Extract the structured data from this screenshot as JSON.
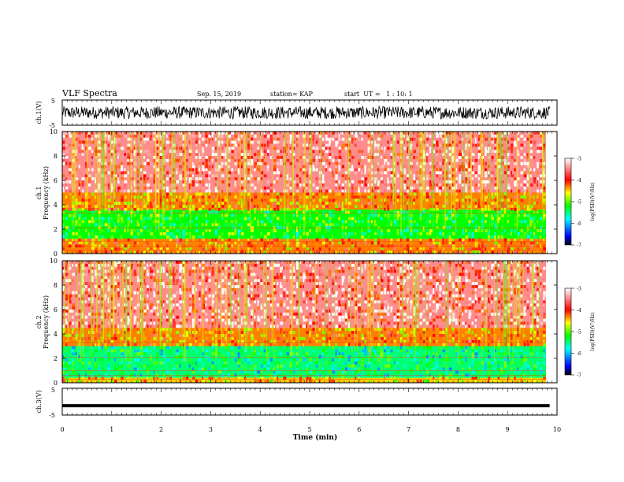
{
  "header": {
    "title": "VLF Spectra",
    "date": "Sep. 15, 2019",
    "station": "station= KAP",
    "start_ut": "start  UT =   1 : 10: 1"
  },
  "chart_data": [
    {
      "type": "line",
      "panel": "ch1-waveform",
      "ylabel": "ch.1(V)",
      "ylim": [
        -5,
        5
      ],
      "yticks": [
        "5",
        "-5"
      ],
      "xlim": [
        0,
        10
      ],
      "x_end": 9.85,
      "series": [
        {
          "amplitude_range": [
            -2.5,
            2.5
          ],
          "color": "#000000"
        }
      ]
    },
    {
      "type": "heatmap",
      "panel": "ch1-spectrogram",
      "ylabel": "ch.1\nFrequency (kHz)",
      "ylim": [
        0,
        10
      ],
      "yticks": [
        "0",
        "2",
        "4",
        "6",
        "8",
        "10"
      ],
      "xlim": [
        0,
        10
      ],
      "x_end": 9.85,
      "colorbar": {
        "label": "log(PSD)(V²/Hz)",
        "range": [
          -7,
          -3
        ],
        "ticks": [
          "-3",
          "-4",
          "-5",
          "-6",
          "-7"
        ]
      },
      "bands": [
        {
          "f_range": [
            5,
            10
          ],
          "logpsd": -3.3
        },
        {
          "f_range": [
            3.6,
            5
          ],
          "logpsd": -4.0
        },
        {
          "f_range": [
            1.2,
            3.6
          ],
          "logpsd": -5.0
        },
        {
          "f_range": [
            0,
            1.2
          ],
          "logpsd": -4.0
        }
      ]
    },
    {
      "type": "heatmap",
      "panel": "ch2-spectrogram",
      "ylabel": "ch.2\nFrequency (kHz)",
      "ylim": [
        0,
        10
      ],
      "yticks": [
        "0",
        "2",
        "4",
        "6",
        "8",
        "10"
      ],
      "xlim": [
        0,
        10
      ],
      "x_end": 9.85,
      "colorbar": {
        "label": "log(PSD)(V²/Hz)",
        "range": [
          -7,
          -3
        ],
        "ticks": [
          "-3",
          "-4",
          "-5",
          "-6",
          "-7"
        ]
      },
      "bands": [
        {
          "f_range": [
            4.5,
            10
          ],
          "logpsd": -3.3
        },
        {
          "f_range": [
            3.0,
            4.5
          ],
          "logpsd": -4.0
        },
        {
          "f_range": [
            0.4,
            3.0
          ],
          "logpsd": -5.3
        },
        {
          "f_range": [
            0,
            0.4
          ],
          "logpsd": -4.2
        }
      ]
    },
    {
      "type": "line",
      "panel": "ch3-waveform",
      "ylabel": "ch.3(V)",
      "ylim": [
        -5,
        5
      ],
      "yticks": [
        "5",
        "-5"
      ],
      "xlim": [
        0,
        10
      ],
      "x_end": 9.85,
      "series": [
        {
          "values_constant": -1.5,
          "color": "#000000"
        }
      ]
    }
  ],
  "xaxis": {
    "label": "Time (min)",
    "ticks": [
      "0",
      "1",
      "2",
      "3",
      "4",
      "5",
      "6",
      "7",
      "8",
      "9",
      "10"
    ]
  },
  "colors": {
    "colormap": [
      "#000080",
      "#0000ff",
      "#00ffff",
      "#00ff00",
      "#ffff00",
      "#ff0000",
      "#ffffff"
    ]
  }
}
